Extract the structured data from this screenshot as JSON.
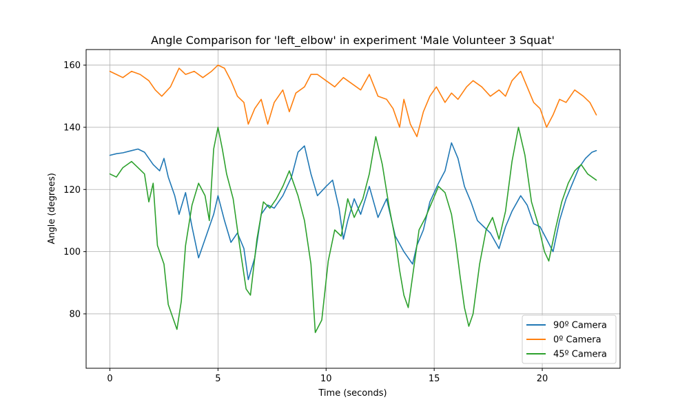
{
  "chart_data": {
    "type": "line",
    "title": "Angle Comparison for 'left_elbow' in experiment 'Male Volunteer 3 Squat'",
    "xlabel": "Time (seconds)",
    "ylabel": "Angle (degrees)",
    "xlim": [
      -1.1,
      23.6
    ],
    "ylim": [
      62.5,
      165
    ],
    "xticks": [
      0,
      5,
      10,
      15,
      20
    ],
    "yticks": [
      80,
      100,
      120,
      140,
      160
    ],
    "grid": true,
    "legend_position": "lower-right",
    "series": [
      {
        "name": "90º Camera",
        "color": "#1f77b4",
        "points": [
          [
            0,
            131
          ],
          [
            0.3,
            131.5
          ],
          [
            0.6,
            131.8
          ],
          [
            1.0,
            132.5
          ],
          [
            1.3,
            133
          ],
          [
            1.6,
            132
          ],
          [
            2.0,
            128
          ],
          [
            2.3,
            126
          ],
          [
            2.5,
            130
          ],
          [
            2.7,
            124
          ],
          [
            3.0,
            118
          ],
          [
            3.2,
            112
          ],
          [
            3.5,
            119
          ],
          [
            3.8,
            108
          ],
          [
            4.1,
            98
          ],
          [
            4.4,
            104
          ],
          [
            4.8,
            112
          ],
          [
            5.0,
            118
          ],
          [
            5.3,
            110
          ],
          [
            5.6,
            103
          ],
          [
            5.9,
            106
          ],
          [
            6.2,
            101
          ],
          [
            6.4,
            91
          ],
          [
            6.7,
            98
          ],
          [
            7.0,
            112
          ],
          [
            7.3,
            115
          ],
          [
            7.6,
            114
          ],
          [
            8.0,
            118
          ],
          [
            8.4,
            124
          ],
          [
            8.7,
            132
          ],
          [
            9.0,
            134
          ],
          [
            9.3,
            125
          ],
          [
            9.6,
            118
          ],
          [
            10.0,
            121
          ],
          [
            10.3,
            123
          ],
          [
            10.6,
            114
          ],
          [
            10.8,
            104
          ],
          [
            11.0,
            110
          ],
          [
            11.3,
            117
          ],
          [
            11.6,
            112
          ],
          [
            12.0,
            121
          ],
          [
            12.4,
            111
          ],
          [
            12.8,
            117
          ],
          [
            13.2,
            105
          ],
          [
            13.6,
            100
          ],
          [
            14.0,
            96
          ],
          [
            14.2,
            102
          ],
          [
            14.5,
            107
          ],
          [
            14.8,
            116
          ],
          [
            15.2,
            122
          ],
          [
            15.5,
            126
          ],
          [
            15.8,
            135
          ],
          [
            16.1,
            130
          ],
          [
            16.4,
            121
          ],
          [
            16.7,
            116
          ],
          [
            17.0,
            110
          ],
          [
            17.3,
            108
          ],
          [
            17.6,
            106
          ],
          [
            18.0,
            101
          ],
          [
            18.3,
            108
          ],
          [
            18.6,
            113
          ],
          [
            19.0,
            118
          ],
          [
            19.3,
            115
          ],
          [
            19.6,
            109
          ],
          [
            19.9,
            108
          ],
          [
            20.2,
            104
          ],
          [
            20.5,
            100
          ],
          [
            20.8,
            110
          ],
          [
            21.1,
            117
          ],
          [
            21.4,
            122
          ],
          [
            21.7,
            127
          ],
          [
            22.0,
            130
          ],
          [
            22.3,
            132
          ],
          [
            22.5,
            132.5
          ]
        ]
      },
      {
        "name": "0º Camera",
        "color": "#ff7f0e",
        "points": [
          [
            0,
            158
          ],
          [
            0.3,
            157
          ],
          [
            0.6,
            156
          ],
          [
            1.0,
            158
          ],
          [
            1.4,
            157
          ],
          [
            1.8,
            155
          ],
          [
            2.1,
            152
          ],
          [
            2.4,
            150
          ],
          [
            2.8,
            153
          ],
          [
            3.2,
            159
          ],
          [
            3.5,
            157
          ],
          [
            3.9,
            158
          ],
          [
            4.3,
            156
          ],
          [
            4.7,
            158
          ],
          [
            5.0,
            160
          ],
          [
            5.3,
            159
          ],
          [
            5.6,
            155
          ],
          [
            5.9,
            150
          ],
          [
            6.2,
            148
          ],
          [
            6.4,
            141
          ],
          [
            6.7,
            146
          ],
          [
            7.0,
            149
          ],
          [
            7.3,
            141
          ],
          [
            7.6,
            148
          ],
          [
            8.0,
            152
          ],
          [
            8.3,
            145
          ],
          [
            8.6,
            151
          ],
          [
            9.0,
            153
          ],
          [
            9.3,
            157
          ],
          [
            9.6,
            157
          ],
          [
            10.0,
            155
          ],
          [
            10.4,
            153
          ],
          [
            10.8,
            156
          ],
          [
            11.2,
            154
          ],
          [
            11.6,
            152
          ],
          [
            12.0,
            157
          ],
          [
            12.4,
            150
          ],
          [
            12.8,
            149
          ],
          [
            13.1,
            146
          ],
          [
            13.4,
            140
          ],
          [
            13.6,
            149
          ],
          [
            13.9,
            141
          ],
          [
            14.2,
            137
          ],
          [
            14.5,
            145
          ],
          [
            14.8,
            150
          ],
          [
            15.1,
            153
          ],
          [
            15.5,
            148
          ],
          [
            15.8,
            151
          ],
          [
            16.1,
            149
          ],
          [
            16.5,
            153
          ],
          [
            16.8,
            155
          ],
          [
            17.2,
            153
          ],
          [
            17.6,
            150
          ],
          [
            18.0,
            152
          ],
          [
            18.3,
            150
          ],
          [
            18.6,
            155
          ],
          [
            19.0,
            158
          ],
          [
            19.3,
            153
          ],
          [
            19.6,
            148
          ],
          [
            19.9,
            146
          ],
          [
            20.2,
            140
          ],
          [
            20.5,
            144
          ],
          [
            20.8,
            149
          ],
          [
            21.1,
            148
          ],
          [
            21.5,
            152
          ],
          [
            21.9,
            150
          ],
          [
            22.2,
            148
          ],
          [
            22.5,
            144
          ]
        ]
      },
      {
        "name": "45º Camera",
        "color": "#2ca02c",
        "points": [
          [
            0,
            125
          ],
          [
            0.3,
            124
          ],
          [
            0.6,
            127
          ],
          [
            1.0,
            129
          ],
          [
            1.3,
            127
          ],
          [
            1.6,
            125
          ],
          [
            1.8,
            116
          ],
          [
            2.0,
            122
          ],
          [
            2.2,
            102
          ],
          [
            2.5,
            96
          ],
          [
            2.7,
            83
          ],
          [
            2.9,
            79
          ],
          [
            3.1,
            75
          ],
          [
            3.3,
            84
          ],
          [
            3.5,
            102
          ],
          [
            3.8,
            115
          ],
          [
            4.1,
            122
          ],
          [
            4.4,
            118
          ],
          [
            4.6,
            110
          ],
          [
            4.8,
            133
          ],
          [
            5.0,
            140
          ],
          [
            5.2,
            133
          ],
          [
            5.4,
            125
          ],
          [
            5.7,
            117
          ],
          [
            6.0,
            102
          ],
          [
            6.3,
            88
          ],
          [
            6.5,
            86
          ],
          [
            6.8,
            104
          ],
          [
            7.1,
            116
          ],
          [
            7.4,
            114
          ],
          [
            7.7,
            117
          ],
          [
            8.0,
            121
          ],
          [
            8.3,
            126
          ],
          [
            8.7,
            118
          ],
          [
            9.0,
            110
          ],
          [
            9.3,
            96
          ],
          [
            9.5,
            74
          ],
          [
            9.8,
            78
          ],
          [
            10.1,
            97
          ],
          [
            10.4,
            107
          ],
          [
            10.7,
            105
          ],
          [
            11.0,
            117
          ],
          [
            11.3,
            111
          ],
          [
            11.7,
            117
          ],
          [
            12.0,
            125
          ],
          [
            12.3,
            137
          ],
          [
            12.6,
            128
          ],
          [
            12.9,
            115
          ],
          [
            13.2,
            104
          ],
          [
            13.4,
            94
          ],
          [
            13.6,
            86
          ],
          [
            13.8,
            82
          ],
          [
            14.0,
            92
          ],
          [
            14.3,
            107
          ],
          [
            14.6,
            111
          ],
          [
            14.9,
            116
          ],
          [
            15.2,
            121
          ],
          [
            15.5,
            119
          ],
          [
            15.8,
            112
          ],
          [
            16.0,
            103
          ],
          [
            16.2,
            92
          ],
          [
            16.4,
            82
          ],
          [
            16.6,
            76
          ],
          [
            16.8,
            80
          ],
          [
            17.1,
            96
          ],
          [
            17.4,
            107
          ],
          [
            17.7,
            111
          ],
          [
            18.0,
            104
          ],
          [
            18.3,
            113
          ],
          [
            18.6,
            129
          ],
          [
            18.9,
            140
          ],
          [
            19.2,
            131
          ],
          [
            19.5,
            116
          ],
          [
            19.8,
            109
          ],
          [
            20.1,
            100
          ],
          [
            20.3,
            97
          ],
          [
            20.6,
            107
          ],
          [
            20.9,
            116
          ],
          [
            21.2,
            122
          ],
          [
            21.5,
            126
          ],
          [
            21.8,
            128
          ],
          [
            22.1,
            125
          ],
          [
            22.5,
            123
          ]
        ]
      }
    ]
  }
}
